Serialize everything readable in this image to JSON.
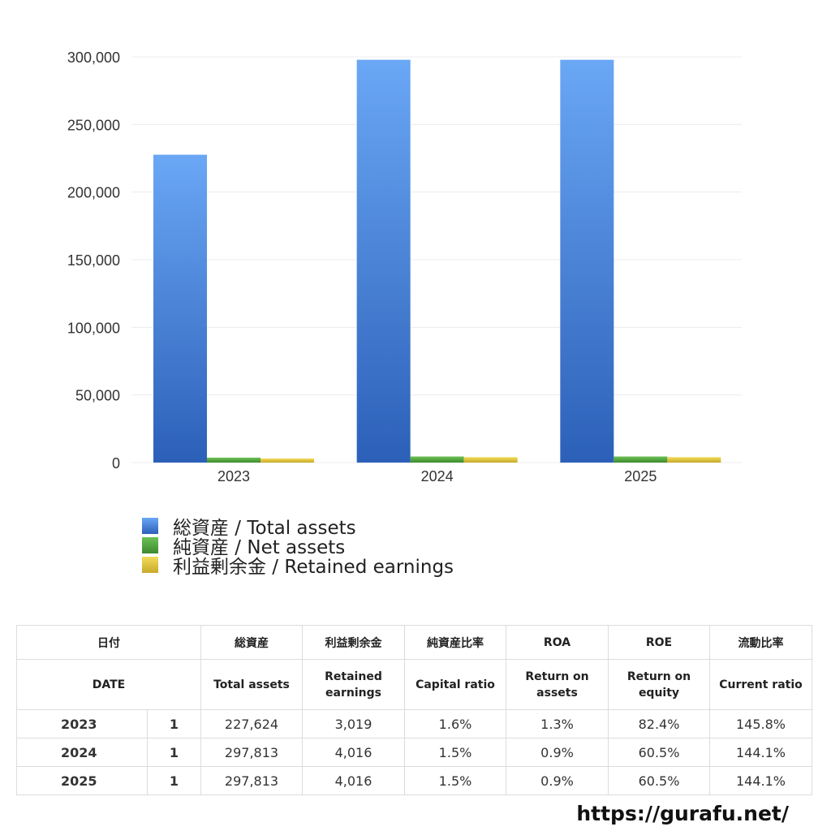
{
  "chart_data": {
    "type": "bar",
    "categories": [
      "2023",
      "2024",
      "2025"
    ],
    "series": [
      {
        "name": "総資産 / Total assets",
        "values": [
          227624,
          297813,
          297813
        ],
        "color": "#4a86db"
      },
      {
        "name": "純資産 / Net assets",
        "values": [
          3650,
          4500,
          4500
        ],
        "color": "#4e9a3c"
      },
      {
        "name": "利益剰余金 / Retained earnings",
        "values": [
          3019,
          4016,
          4016
        ],
        "color": "#d9c23c"
      }
    ],
    "yticks": [
      "300,000",
      "250,000",
      "200,000",
      "150,000",
      "100,000",
      "50,000",
      "0"
    ],
    "ylim": [
      0,
      300000
    ],
    "grid": true,
    "legend_position": "bottom-left"
  },
  "table": {
    "headers_jp": [
      "日付",
      "",
      "総資産",
      "利益剰余金",
      "純資産比率",
      "ROA",
      "ROE",
      "流動比率"
    ],
    "headers_en": [
      "DATE",
      "",
      "Total assets",
      "Retained earnings",
      "Capital ratio",
      "Return on assets",
      "Return on equity",
      "Current ratio"
    ],
    "rows": [
      [
        "2023",
        "1",
        "227,624",
        "3,019",
        "1.6%",
        "1.3%",
        "82.4%",
        "145.8%"
      ],
      [
        "2024",
        "1",
        "297,813",
        "4,016",
        "1.5%",
        "0.9%",
        "60.5%",
        "144.1%"
      ],
      [
        "2025",
        "1",
        "297,813",
        "4,016",
        "1.5%",
        "0.9%",
        "60.5%",
        "144.1%"
      ]
    ]
  },
  "site_url": "https://gurafu.net/"
}
